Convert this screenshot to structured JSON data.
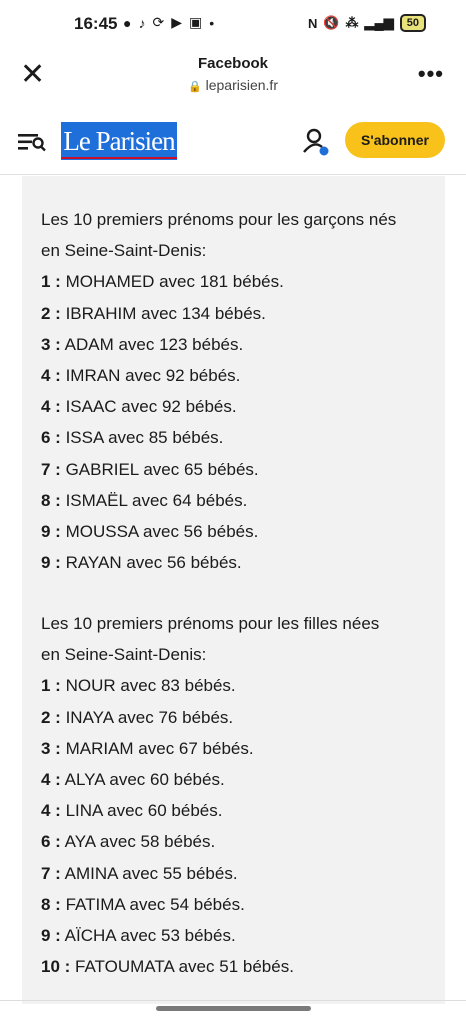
{
  "status_bar": {
    "time": "16:45",
    "battery": "50"
  },
  "browser": {
    "title": "Facebook",
    "url": "leparisien.fr"
  },
  "site": {
    "logo_text": "Le Parisien",
    "subscribe_label": "S'abonner"
  },
  "boys": {
    "intro": [
      "Les 10 premiers prénoms pour les garçons nés",
      "en Seine-Saint-Denis:"
    ],
    "items": [
      {
        "rank": "1 :",
        "text": " MOHAMED avec 181 bébés."
      },
      {
        "rank": "2 :",
        "text": " IBRAHIM avec 134 bébés."
      },
      {
        "rank": "3 :",
        "text": " ADAM avec 123 bébés."
      },
      {
        "rank": "4 :",
        "text": " IMRAN avec 92 bébés."
      },
      {
        "rank": "4 :",
        "text": " ISAAC avec 92 bébés."
      },
      {
        "rank": "6 :",
        "text": " ISSA avec 85 bébés."
      },
      {
        "rank": "7 :",
        "text": " GABRIEL avec 65 bébés."
      },
      {
        "rank": "8 :",
        "text": " ISMAËL avec 64 bébés."
      },
      {
        "rank": "9 :",
        "text": " MOUSSA avec 56 bébés."
      },
      {
        "rank": "9 :",
        "text": " RAYAN avec 56 bébés."
      }
    ]
  },
  "girls": {
    "intro": [
      "Les 10 premiers prénoms pour les filles nées",
      "en Seine-Saint-Denis:"
    ],
    "items": [
      {
        "rank": "1 :",
        "text": " NOUR avec 83 bébés."
      },
      {
        "rank": "2 :",
        "text": " INAYA avec 76 bébés."
      },
      {
        "rank": "3 :",
        "text": " MARIAM avec 67 bébés."
      },
      {
        "rank": "4 :",
        "text": " ALYA avec 60 bébés."
      },
      {
        "rank": "4 :",
        "text": " LINA avec 60 bébés."
      },
      {
        "rank": "6 :",
        "text": " AYA avec 58 bébés."
      },
      {
        "rank": "7 :",
        "text": " AMINA avec 55 bébés."
      },
      {
        "rank": "8 :",
        "text": " FATIMA avec 54 bébés."
      },
      {
        "rank": "9 :",
        "text": " AÏCHA avec 53 bébés."
      },
      {
        "rank": "10 :",
        "text": " FATOUMATA avec 51 bébés."
      }
    ]
  }
}
